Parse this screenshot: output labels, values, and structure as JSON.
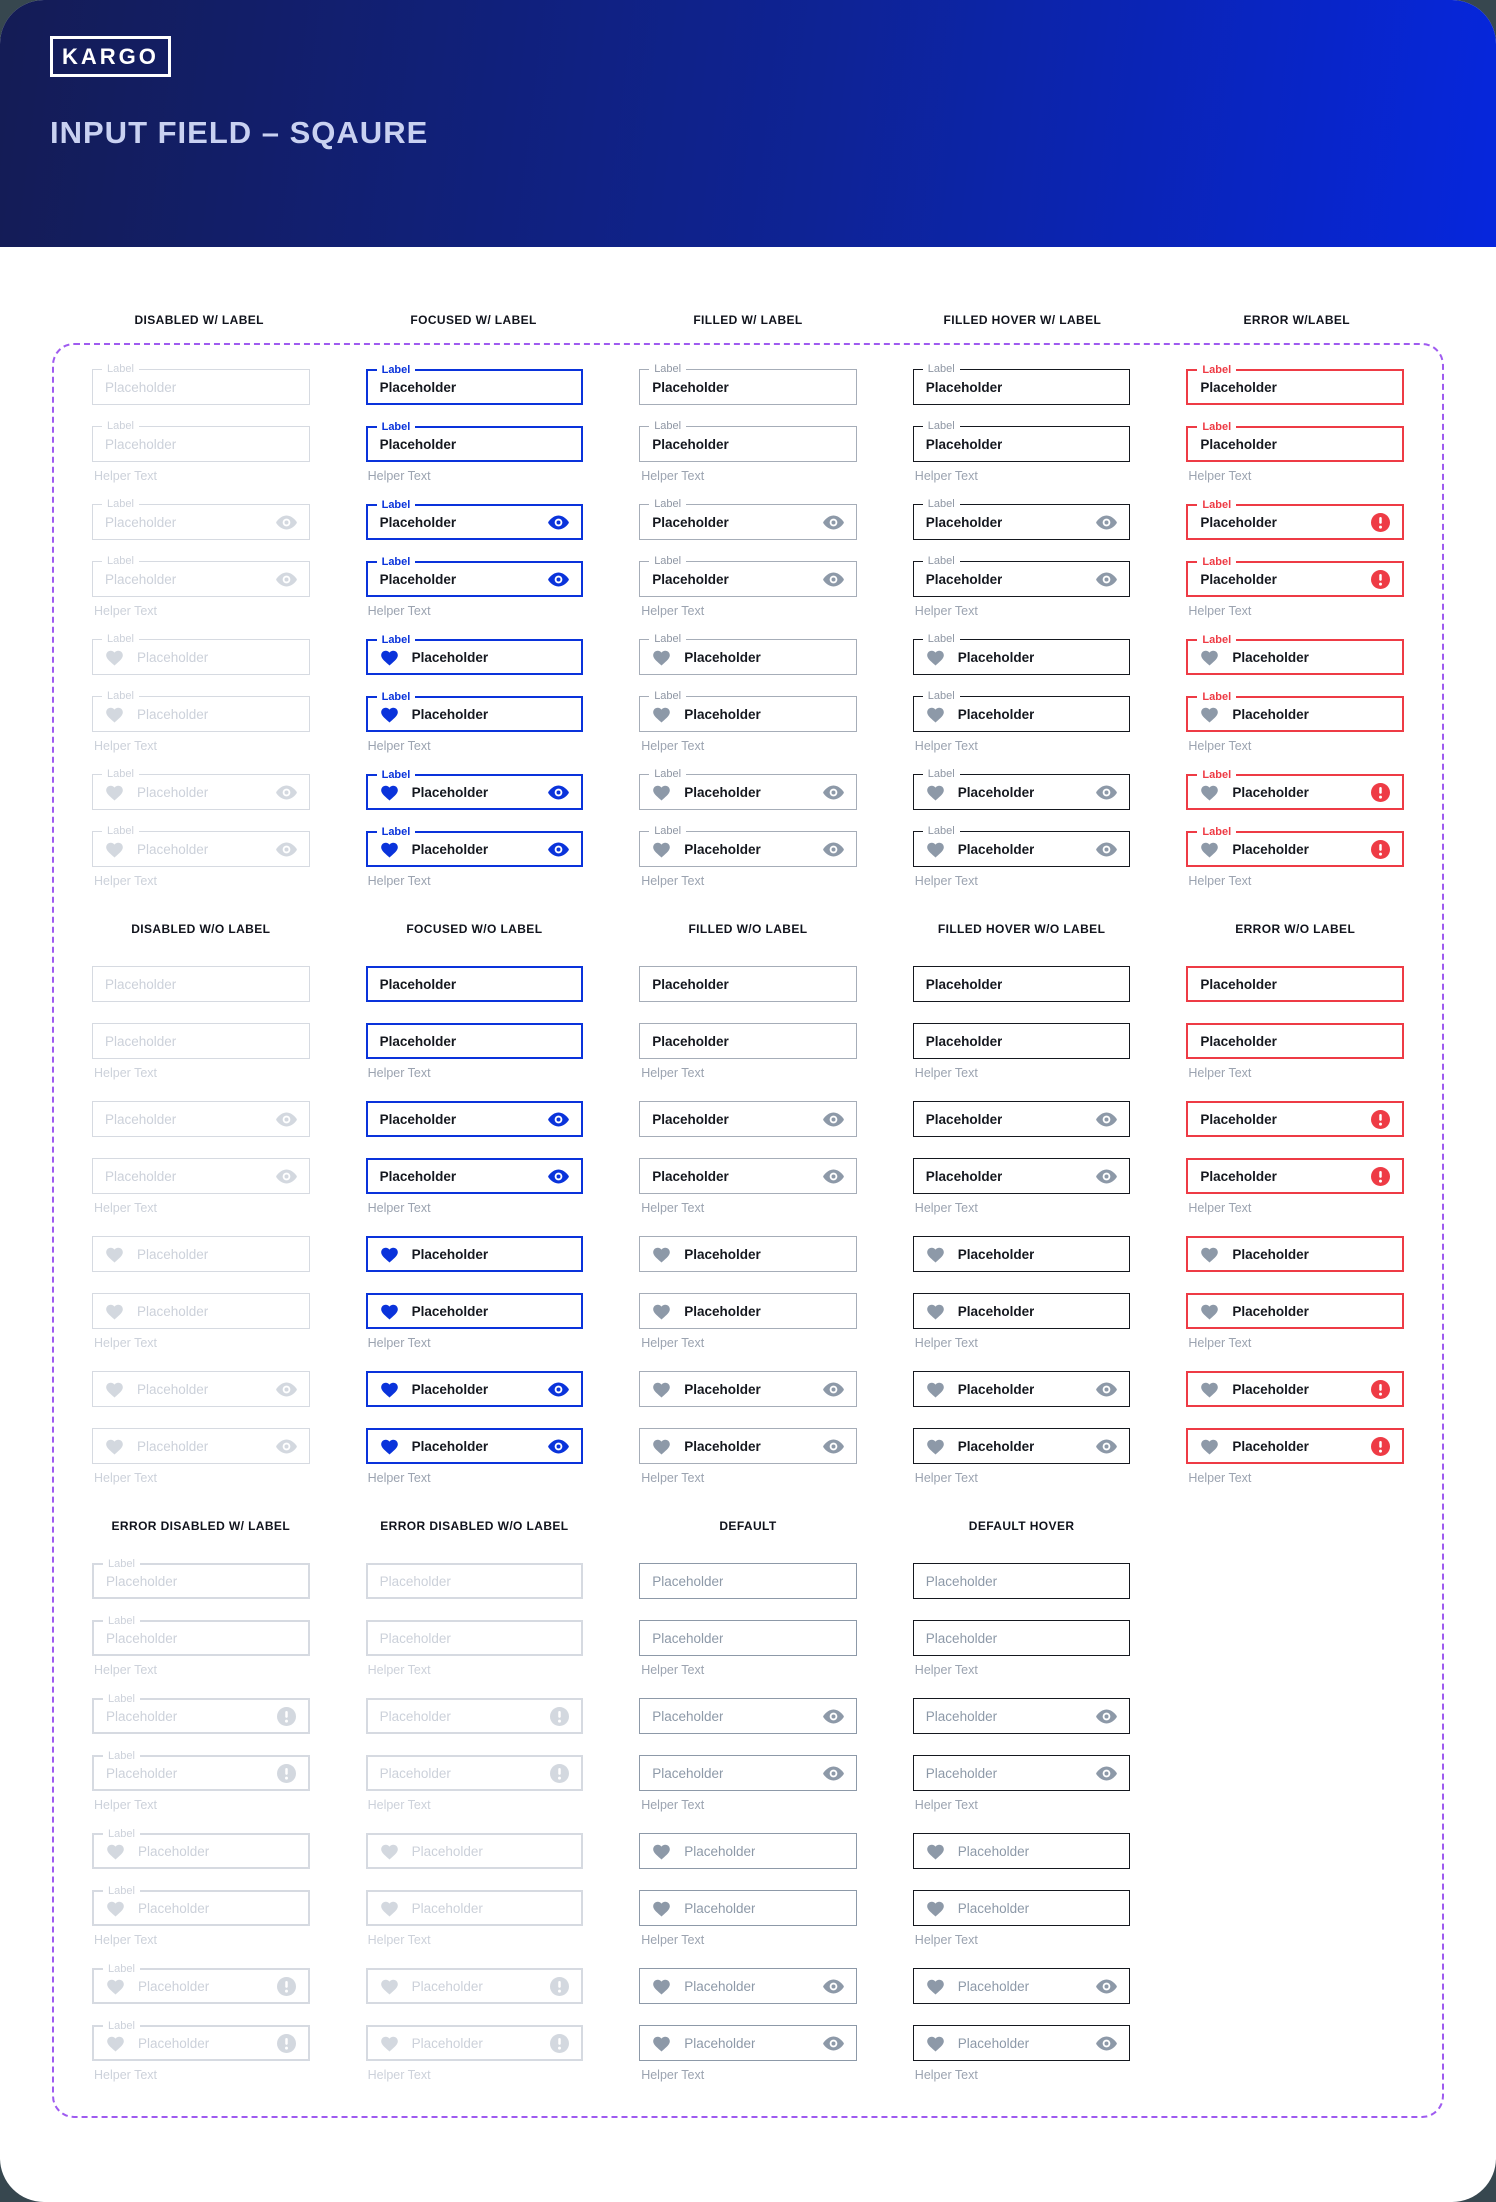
{
  "header": {
    "logo": "KARGO",
    "title": "INPUT FIELD – SQAURE"
  },
  "strings": {
    "label": "Label",
    "placeholder": "Placeholder",
    "helper": "Helper Text"
  },
  "icons": {
    "leading": "heart-icon",
    "trailing": "eye-icon",
    "error_badge": "alert-circle-icon"
  },
  "colors": {
    "backdrop": "#37474f",
    "card_bg": "#ffffff",
    "header_gradient_from": "#141c55",
    "header_gradient_mid": "#0e2395",
    "header_gradient_to": "#0626dd",
    "title_text": "#c9d1f1",
    "column_header_text": "#10131c",
    "focused_blue": "#0a33db",
    "error_red": "#ee3b45",
    "disabled_gray": "#ccd1da",
    "disabled_icon": "#d3d8df",
    "disabled_border": "#d6dae1",
    "filled_border": "#a6adb8",
    "hover_border": "#15181f",
    "default_gray": "#8d99a8",
    "dark_text": "#15181f",
    "label_gray": "#8f97a4",
    "helper_gray": "#9ba3b0",
    "dash_purple": "#9f5bf0"
  },
  "row_pattern": [
    {
      "icons": [],
      "helper": false
    },
    {
      "icons": [],
      "helper": true
    },
    {
      "icons": [
        "eye"
      ],
      "helper": false
    },
    {
      "icons": [
        "eye"
      ],
      "helper": true
    },
    {
      "icons": [
        "heart"
      ],
      "helper": false
    },
    {
      "icons": [
        "heart"
      ],
      "helper": true
    },
    {
      "icons": [
        "heart",
        "eye"
      ],
      "helper": false
    },
    {
      "icons": [
        "heart",
        "eye"
      ],
      "helper": true
    }
  ],
  "sections": [
    {
      "name": "with-label",
      "headers_outside": true,
      "columns": [
        {
          "header": "DISABLED W/ LABEL",
          "variant": "disabled",
          "label": true
        },
        {
          "header": "FOCUSED W/ LABEL",
          "variant": "focused",
          "label": true
        },
        {
          "header": "FILLED W/ LABEL",
          "variant": "filled",
          "label": true
        },
        {
          "header": "FILLED HOVER W/ LABEL",
          "variant": "hover",
          "label": true
        },
        {
          "header": "ERROR W/LABEL",
          "variant": "error",
          "label": true
        }
      ]
    },
    {
      "name": "without-label",
      "headers_outside": false,
      "columns": [
        {
          "header": "DISABLED W/O LABEL",
          "variant": "disabled",
          "label": false
        },
        {
          "header": "FOCUSED W/O LABEL",
          "variant": "focused",
          "label": false
        },
        {
          "header": "FILLED W/O LABEL",
          "variant": "filled",
          "label": false
        },
        {
          "header": "FILLED HOVER W/O LABEL",
          "variant": "hover",
          "label": false
        },
        {
          "header": "ERROR W/O LABEL",
          "variant": "error",
          "label": false
        }
      ]
    },
    {
      "name": "error-disabled-and-default",
      "headers_outside": false,
      "columns": [
        {
          "header": "ERROR DISABLED W/ LABEL",
          "variant": "error-disabled",
          "label": true
        },
        {
          "header": "ERROR DISABLED W/O LABEL",
          "variant": "error-disabled",
          "label": false
        },
        {
          "header": "DEFAULT",
          "variant": "default",
          "label": false
        },
        {
          "header": "DEFAULT HOVER",
          "variant": "default-hover",
          "label": false
        }
      ]
    }
  ]
}
